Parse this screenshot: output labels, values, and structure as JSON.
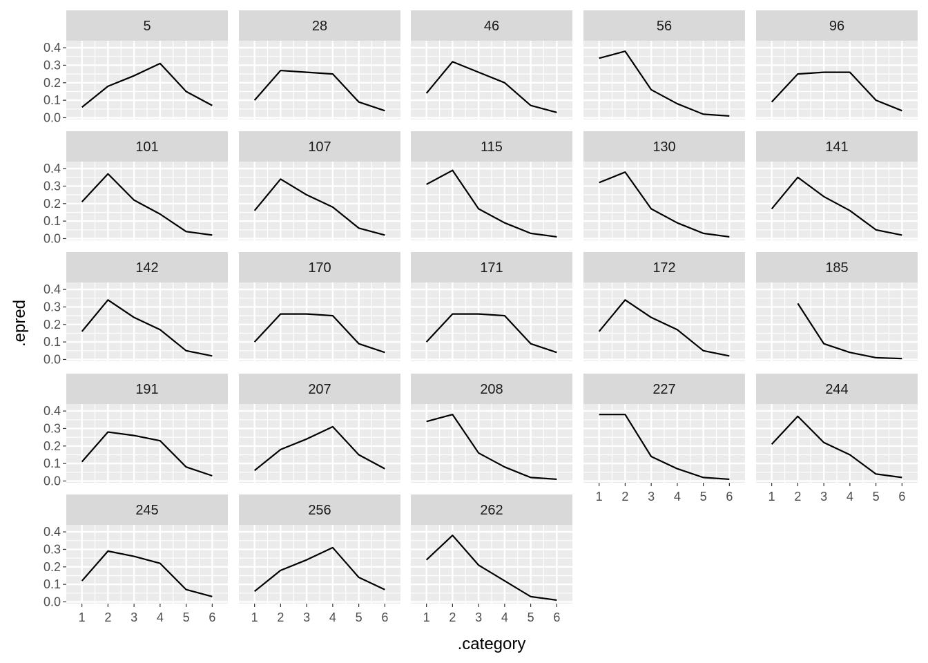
{
  "chart_data": {
    "type": "line",
    "layout": "facet_wrap",
    "xlabel": ".category",
    "ylabel": ".epred",
    "x": [
      1,
      2,
      3,
      4,
      5,
      6
    ],
    "xticks": [
      "1",
      "2",
      "3",
      "4",
      "5",
      "6"
    ],
    "ylim": [
      -0.01,
      0.44
    ],
    "yticks": [
      "0.0",
      "0.1",
      "0.2",
      "0.3",
      "0.4"
    ],
    "ytick_values": [
      0.0,
      0.1,
      0.2,
      0.3,
      0.4
    ],
    "grid": true,
    "colors": {
      "panel_background": "#ebebeb",
      "strip_background": "#d9d9d9",
      "gridline": "#ffffff",
      "line": "#000000"
    },
    "panels": [
      {
        "label": "5",
        "values": [
          0.06,
          0.18,
          0.24,
          0.31,
          0.15,
          0.07
        ]
      },
      {
        "label": "28",
        "values": [
          0.1,
          0.27,
          0.26,
          0.25,
          0.09,
          0.04
        ]
      },
      {
        "label": "46",
        "values": [
          0.14,
          0.32,
          0.26,
          0.2,
          0.07,
          0.03
        ]
      },
      {
        "label": "56",
        "values": [
          0.34,
          0.38,
          0.16,
          0.08,
          0.02,
          0.01
        ]
      },
      {
        "label": "96",
        "values": [
          0.09,
          0.25,
          0.26,
          0.26,
          0.1,
          0.04
        ]
      },
      {
        "label": "101",
        "values": [
          0.21,
          0.37,
          0.22,
          0.14,
          0.04,
          0.02
        ]
      },
      {
        "label": "107",
        "values": [
          0.16,
          0.34,
          0.25,
          0.18,
          0.06,
          0.02
        ]
      },
      {
        "label": "115",
        "values": [
          0.31,
          0.39,
          0.17,
          0.09,
          0.03,
          0.01
        ]
      },
      {
        "label": "130",
        "values": [
          0.32,
          0.38,
          0.17,
          0.09,
          0.03,
          0.01
        ]
      },
      {
        "label": "141",
        "values": [
          0.17,
          0.35,
          0.24,
          0.16,
          0.05,
          0.02
        ]
      },
      {
        "label": "142",
        "values": [
          0.16,
          0.34,
          0.24,
          0.17,
          0.05,
          0.02
        ]
      },
      {
        "label": "170",
        "values": [
          0.1,
          0.26,
          0.26,
          0.25,
          0.09,
          0.04
        ]
      },
      {
        "label": "171",
        "values": [
          0.1,
          0.26,
          0.26,
          0.25,
          0.09,
          0.04
        ]
      },
      {
        "label": "172",
        "values": [
          0.16,
          0.34,
          0.24,
          0.17,
          0.05,
          0.02
        ]
      },
      {
        "label": "185",
        "values": [
          null,
          0.32,
          0.09,
          0.04,
          0.01,
          0.005
        ]
      },
      {
        "label": "191",
        "values": [
          0.11,
          0.28,
          0.26,
          0.23,
          0.08,
          0.03
        ]
      },
      {
        "label": "207",
        "values": [
          0.06,
          0.18,
          0.24,
          0.31,
          0.15,
          0.07
        ]
      },
      {
        "label": "208",
        "values": [
          0.34,
          0.38,
          0.16,
          0.08,
          0.02,
          0.01
        ]
      },
      {
        "label": "227",
        "values": [
          0.38,
          0.38,
          0.14,
          0.07,
          0.02,
          0.01
        ]
      },
      {
        "label": "244",
        "values": [
          0.21,
          0.37,
          0.22,
          0.15,
          0.04,
          0.02
        ]
      },
      {
        "label": "245",
        "values": [
          0.12,
          0.29,
          0.26,
          0.22,
          0.07,
          0.03
        ]
      },
      {
        "label": "256",
        "values": [
          0.06,
          0.18,
          0.24,
          0.31,
          0.14,
          0.07
        ]
      },
      {
        "label": "262",
        "values": [
          0.24,
          0.38,
          0.21,
          0.12,
          0.03,
          0.01
        ]
      }
    ]
  }
}
